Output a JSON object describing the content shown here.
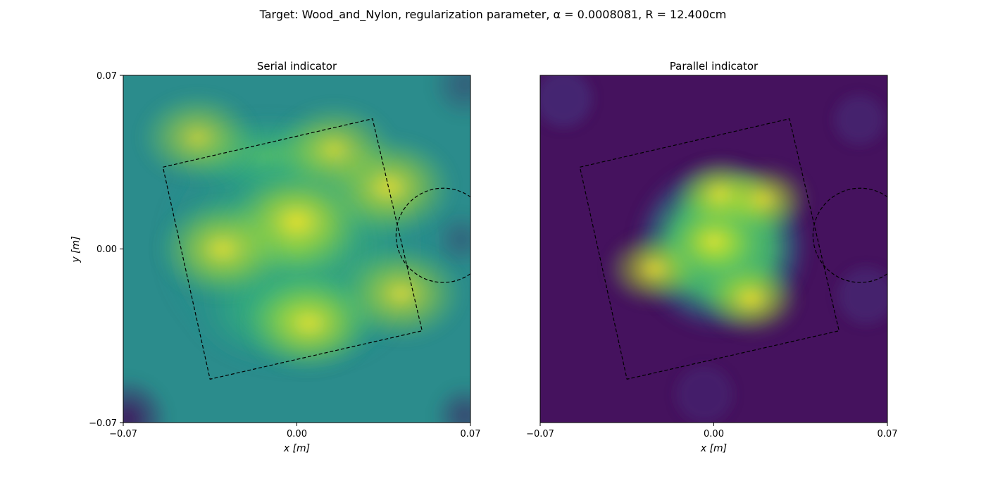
{
  "figure": {
    "suptitle": "Target: Wood_and_Nylon, regularization parameter, α = 0.0008081, R = 12.400cm"
  },
  "chart_data": [
    {
      "type": "heatmap",
      "title": "Serial indicator",
      "xlabel": "x [m]",
      "ylabel": "y [m]",
      "xlim": [
        -0.07,
        0.07
      ],
      "ylim": [
        -0.07,
        0.07
      ],
      "x_ticks": [
        "−0.07",
        "0.00",
        "0.07"
      ],
      "y_ticks": [
        "−0.07",
        "0.00",
        "0.07"
      ],
      "colormap": "viridis",
      "grid": false,
      "overlay_square_corners": [
        [
          -0.054,
          0.033
        ],
        [
          0.0305,
          0.0525
        ],
        [
          0.0505,
          -0.033
        ],
        [
          -0.035,
          -0.0525
        ]
      ],
      "overlay_circle": {
        "center": [
          0.059,
          0.0055
        ],
        "radius": 0.019
      },
      "hotspots": [
        {
          "x": 0.0,
          "y": 0.011,
          "value": 1.0
        },
        {
          "x": -0.03,
          "y": 0.0,
          "value": 0.85
        },
        {
          "x": 0.037,
          "y": 0.025,
          "value": 0.88
        },
        {
          "x": 0.005,
          "y": -0.03,
          "value": 0.82
        },
        {
          "x": 0.042,
          "y": -0.018,
          "value": 0.75
        },
        {
          "x": -0.04,
          "y": 0.045,
          "value": 0.55
        },
        {
          "x": 0.015,
          "y": 0.04,
          "value": 0.65
        }
      ]
    },
    {
      "type": "heatmap",
      "title": "Parallel indicator",
      "xlabel": "x [m]",
      "ylabel": "",
      "xlim": [
        -0.07,
        0.07
      ],
      "ylim": [
        -0.07,
        0.07
      ],
      "x_ticks": [
        "−0.07",
        "0.00",
        "0.07"
      ],
      "y_ticks": [],
      "colormap": "viridis",
      "grid": false,
      "overlay_square_corners": [
        [
          -0.054,
          0.033
        ],
        [
          0.0305,
          0.0525
        ],
        [
          0.0505,
          -0.033
        ],
        [
          -0.035,
          -0.0525
        ]
      ],
      "overlay_circle": {
        "center": [
          0.059,
          0.0055
        ],
        "radius": 0.019
      },
      "hotspots": [
        {
          "x": 0.0,
          "y": 0.003,
          "value": 0.75
        },
        {
          "x": 0.003,
          "y": 0.022,
          "value": 0.95
        },
        {
          "x": 0.015,
          "y": -0.02,
          "value": 1.0
        },
        {
          "x": -0.024,
          "y": -0.008,
          "value": 0.92
        },
        {
          "x": 0.02,
          "y": 0.02,
          "value": 0.85
        }
      ]
    }
  ]
}
